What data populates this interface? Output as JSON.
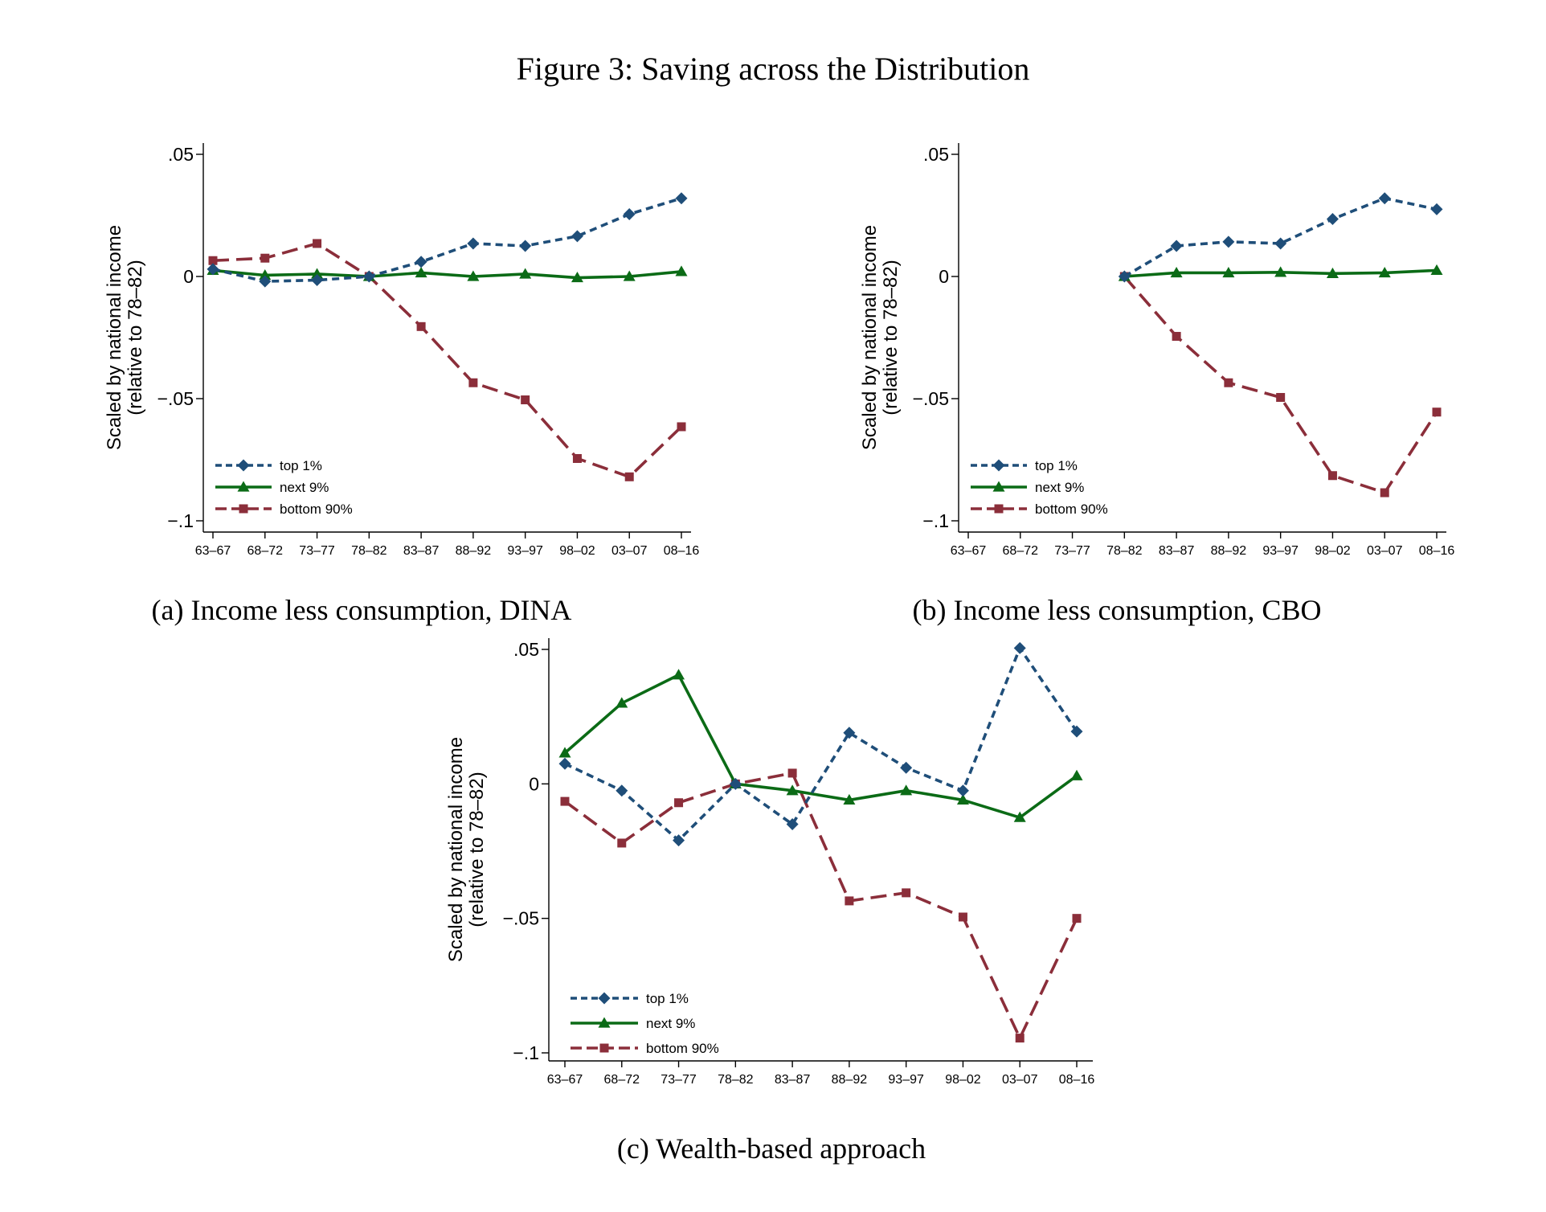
{
  "figure_title": "Figure 3: Saving across the Distribution",
  "colors": {
    "top1": "#1f4e79",
    "next9": "#0b6b16",
    "bottom90": "#8b2e3a"
  },
  "chart_data": [
    {
      "type": "line",
      "caption": "(a) Income less consumption, DINA",
      "ylabel": [
        "Scaled by national income",
        "(relative to 78–82)"
      ],
      "ylim": [
        -0.1,
        0.05
      ],
      "yticks": [
        0.05,
        0,
        -0.05,
        -0.1
      ],
      "ytick_labels": [
        ".05",
        "0",
        "−.05",
        "−.1"
      ],
      "categories": [
        "63–67",
        "68–72",
        "73–77",
        "78–82",
        "83–87",
        "88–92",
        "93–97",
        "98–02",
        "03–07",
        "08–16"
      ],
      "legend": "bottom-left",
      "grid": false,
      "series": [
        {
          "name": "top 1%",
          "marker": "diamond",
          "dash": "short",
          "color": "#1f4e79",
          "values": [
            0.003,
            -0.002,
            -0.0015,
            0.0,
            0.006,
            0.0135,
            0.0125,
            0.0165,
            0.0255,
            0.032
          ]
        },
        {
          "name": "next 9%",
          "marker": "triangle",
          "dash": "solid",
          "color": "#0b6b16",
          "values": [
            0.0025,
            0.0005,
            0.001,
            0.0,
            0.0015,
            0.0,
            0.001,
            -0.0005,
            0.0,
            0.002
          ]
        },
        {
          "name": "bottom 90%",
          "marker": "square",
          "dash": "long",
          "color": "#8b2e3a",
          "values": [
            0.0065,
            0.0075,
            0.0135,
            0.0,
            -0.0205,
            -0.0435,
            -0.0505,
            -0.0745,
            -0.082,
            -0.0615
          ]
        }
      ]
    },
    {
      "type": "line",
      "caption": "(b) Income less consumption, CBO",
      "ylabel": [
        "Scaled by national income",
        "(relative to 78–82)"
      ],
      "ylim": [
        -0.1,
        0.05
      ],
      "yticks": [
        0.05,
        0,
        -0.05,
        -0.1
      ],
      "ytick_labels": [
        ".05",
        "0",
        "−.05",
        "−.1"
      ],
      "categories": [
        "63–67",
        "68–72",
        "73–77",
        "78–82",
        "83–87",
        "88–92",
        "93–97",
        "98–02",
        "03–07",
        "08–16"
      ],
      "legend": "bottom-left",
      "grid": false,
      "series": [
        {
          "name": "top 1%",
          "marker": "diamond",
          "dash": "short",
          "color": "#1f4e79",
          "values": [
            null,
            null,
            null,
            0.0,
            0.0125,
            0.0142,
            0.0135,
            0.0235,
            0.032,
            0.0275
          ]
        },
        {
          "name": "next 9%",
          "marker": "triangle",
          "dash": "solid",
          "color": "#0b6b16",
          "values": [
            null,
            null,
            null,
            0.0,
            0.0015,
            0.0015,
            0.0017,
            0.0012,
            0.0015,
            0.0025
          ]
        },
        {
          "name": "bottom 90%",
          "marker": "square",
          "dash": "long",
          "color": "#8b2e3a",
          "values": [
            null,
            null,
            null,
            0.0,
            -0.0245,
            -0.0435,
            -0.0495,
            -0.0815,
            -0.0885,
            -0.0555
          ]
        }
      ]
    },
    {
      "type": "line",
      "caption": "(c) Wealth-based approach",
      "ylabel": [
        "Scaled by national income",
        "(relative to 78–82)"
      ],
      "ylim": [
        -0.1,
        0.05
      ],
      "yticks": [
        0.05,
        0,
        -0.05,
        -0.1
      ],
      "ytick_labels": [
        ".05",
        "0",
        "−.05",
        "−.1"
      ],
      "categories": [
        "63–67",
        "68–72",
        "73–77",
        "78–82",
        "83–87",
        "88–92",
        "93–97",
        "98–02",
        "03–07",
        "08–16"
      ],
      "legend": "bottom-left",
      "grid": false,
      "series": [
        {
          "name": "top 1%",
          "marker": "diamond",
          "dash": "short",
          "color": "#1f4e79",
          "values": [
            0.0075,
            -0.0025,
            -0.021,
            0.0,
            -0.015,
            0.019,
            0.006,
            -0.0025,
            0.0505,
            0.0195
          ]
        },
        {
          "name": "next 9%",
          "marker": "triangle",
          "dash": "solid",
          "color": "#0b6b16",
          "values": [
            0.0115,
            0.03,
            0.0405,
            0.0,
            -0.0025,
            -0.006,
            -0.0025,
            -0.006,
            -0.0125,
            0.003
          ]
        },
        {
          "name": "bottom 90%",
          "marker": "square",
          "dash": "long",
          "color": "#8b2e3a",
          "values": [
            -0.0065,
            -0.022,
            -0.007,
            0.0,
            0.004,
            -0.0435,
            -0.0405,
            -0.0495,
            -0.0945,
            -0.05
          ]
        }
      ]
    }
  ]
}
